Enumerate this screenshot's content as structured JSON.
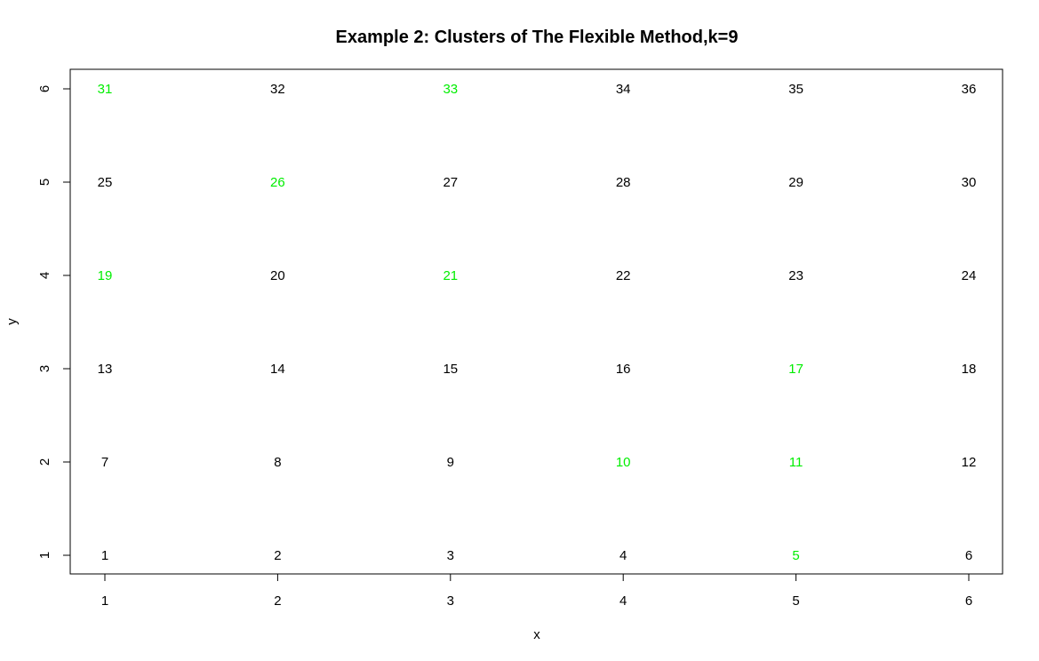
{
  "chart_data": {
    "type": "scatter",
    "title": "Example 2: Clusters of The Flexible Method,k=9",
    "xlabel": "x",
    "ylabel": "y",
    "xlim": [
      1,
      6
    ],
    "ylim": [
      1,
      6
    ],
    "xticks": [
      1,
      2,
      3,
      4,
      5,
      6
    ],
    "yticks": [
      1,
      2,
      3,
      4,
      5,
      6
    ],
    "grid": false,
    "legend": "none",
    "colors": {
      "default": "#000000",
      "highlight": "#00ee00"
    },
    "points": [
      {
        "x": 1,
        "y": 1,
        "label": "1",
        "highlight": false
      },
      {
        "x": 2,
        "y": 1,
        "label": "2",
        "highlight": false
      },
      {
        "x": 3,
        "y": 1,
        "label": "3",
        "highlight": false
      },
      {
        "x": 4,
        "y": 1,
        "label": "4",
        "highlight": false
      },
      {
        "x": 5,
        "y": 1,
        "label": "5",
        "highlight": true
      },
      {
        "x": 6,
        "y": 1,
        "label": "6",
        "highlight": false
      },
      {
        "x": 1,
        "y": 2,
        "label": "7",
        "highlight": false
      },
      {
        "x": 2,
        "y": 2,
        "label": "8",
        "highlight": false
      },
      {
        "x": 3,
        "y": 2,
        "label": "9",
        "highlight": false
      },
      {
        "x": 4,
        "y": 2,
        "label": "10",
        "highlight": true
      },
      {
        "x": 5,
        "y": 2,
        "label": "11",
        "highlight": true
      },
      {
        "x": 6,
        "y": 2,
        "label": "12",
        "highlight": false
      },
      {
        "x": 1,
        "y": 3,
        "label": "13",
        "highlight": false
      },
      {
        "x": 2,
        "y": 3,
        "label": "14",
        "highlight": false
      },
      {
        "x": 3,
        "y": 3,
        "label": "15",
        "highlight": false
      },
      {
        "x": 4,
        "y": 3,
        "label": "16",
        "highlight": false
      },
      {
        "x": 5,
        "y": 3,
        "label": "17",
        "highlight": true
      },
      {
        "x": 6,
        "y": 3,
        "label": "18",
        "highlight": false
      },
      {
        "x": 1,
        "y": 4,
        "label": "19",
        "highlight": true
      },
      {
        "x": 2,
        "y": 4,
        "label": "20",
        "highlight": false
      },
      {
        "x": 3,
        "y": 4,
        "label": "21",
        "highlight": true
      },
      {
        "x": 4,
        "y": 4,
        "label": "22",
        "highlight": false
      },
      {
        "x": 5,
        "y": 4,
        "label": "23",
        "highlight": false
      },
      {
        "x": 6,
        "y": 4,
        "label": "24",
        "highlight": false
      },
      {
        "x": 1,
        "y": 5,
        "label": "25",
        "highlight": false
      },
      {
        "x": 2,
        "y": 5,
        "label": "26",
        "highlight": true
      },
      {
        "x": 3,
        "y": 5,
        "label": "27",
        "highlight": false
      },
      {
        "x": 4,
        "y": 5,
        "label": "28",
        "highlight": false
      },
      {
        "x": 5,
        "y": 5,
        "label": "29",
        "highlight": false
      },
      {
        "x": 6,
        "y": 5,
        "label": "30",
        "highlight": false
      },
      {
        "x": 1,
        "y": 6,
        "label": "31",
        "highlight": true
      },
      {
        "x": 2,
        "y": 6,
        "label": "32",
        "highlight": false
      },
      {
        "x": 3,
        "y": 6,
        "label": "33",
        "highlight": true
      },
      {
        "x": 4,
        "y": 6,
        "label": "34",
        "highlight": false
      },
      {
        "x": 5,
        "y": 6,
        "label": "35",
        "highlight": false
      },
      {
        "x": 6,
        "y": 6,
        "label": "36",
        "highlight": false
      }
    ]
  }
}
